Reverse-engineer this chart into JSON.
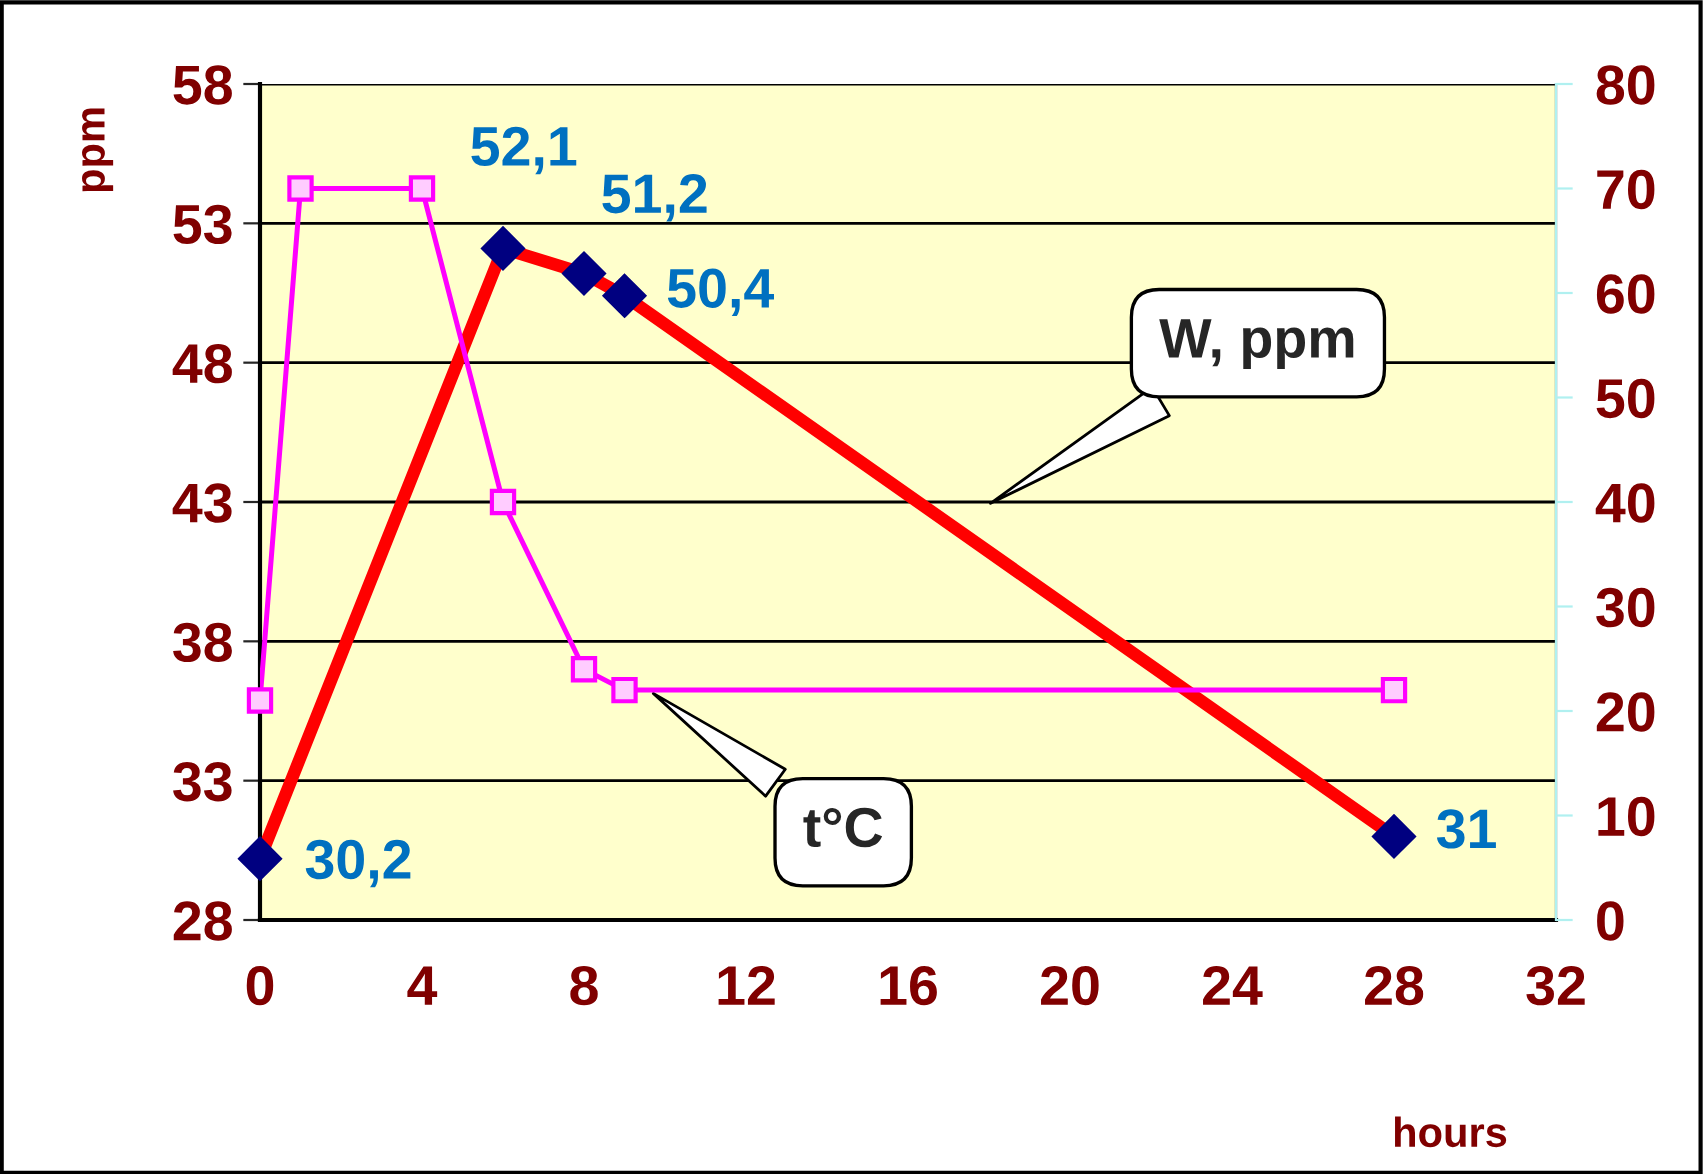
{
  "chart_data": {
    "type": "line",
    "xlabel": "hours",
    "ylabel": "ppm",
    "xlim": [
      0,
      32
    ],
    "xticks": [
      0,
      4,
      8,
      12,
      16,
      20,
      24,
      28,
      32
    ],
    "ylim": [
      28,
      58
    ],
    "yticks": [
      28,
      33,
      38,
      43,
      48,
      53,
      58
    ],
    "y2lim": [
      0,
      80
    ],
    "y2ticks": [
      0,
      10,
      20,
      30,
      40,
      50,
      60,
      70,
      80
    ],
    "grid": "y",
    "legend": false,
    "series": [
      {
        "color": "#ff0000",
        "colors": [
          "#000080",
          "#000080",
          "#000080",
          "#000080",
          "#000080"
        ],
        "marker": "diamond",
        "line_style": "solid",
        "x": [
          0,
          6,
          8,
          9,
          28
        ],
        "values": [
          30.2,
          52.1,
          51.2,
          50.4,
          31
        ],
        "value_labels": [
          "30,2",
          "52,1",
          "51,2",
          "50,4",
          "31"
        ]
      },
      {
        "axis": "y2",
        "color": "#ff00ff",
        "marker": "square",
        "line_style": "solid",
        "x": [
          0,
          1,
          4,
          6,
          8,
          9,
          28
        ],
        "values": [
          21,
          70,
          70,
          40,
          24,
          22,
          22
        ]
      }
    ],
    "annotations": [
      "W, ppm",
      "t°C"
    ]
  }
}
